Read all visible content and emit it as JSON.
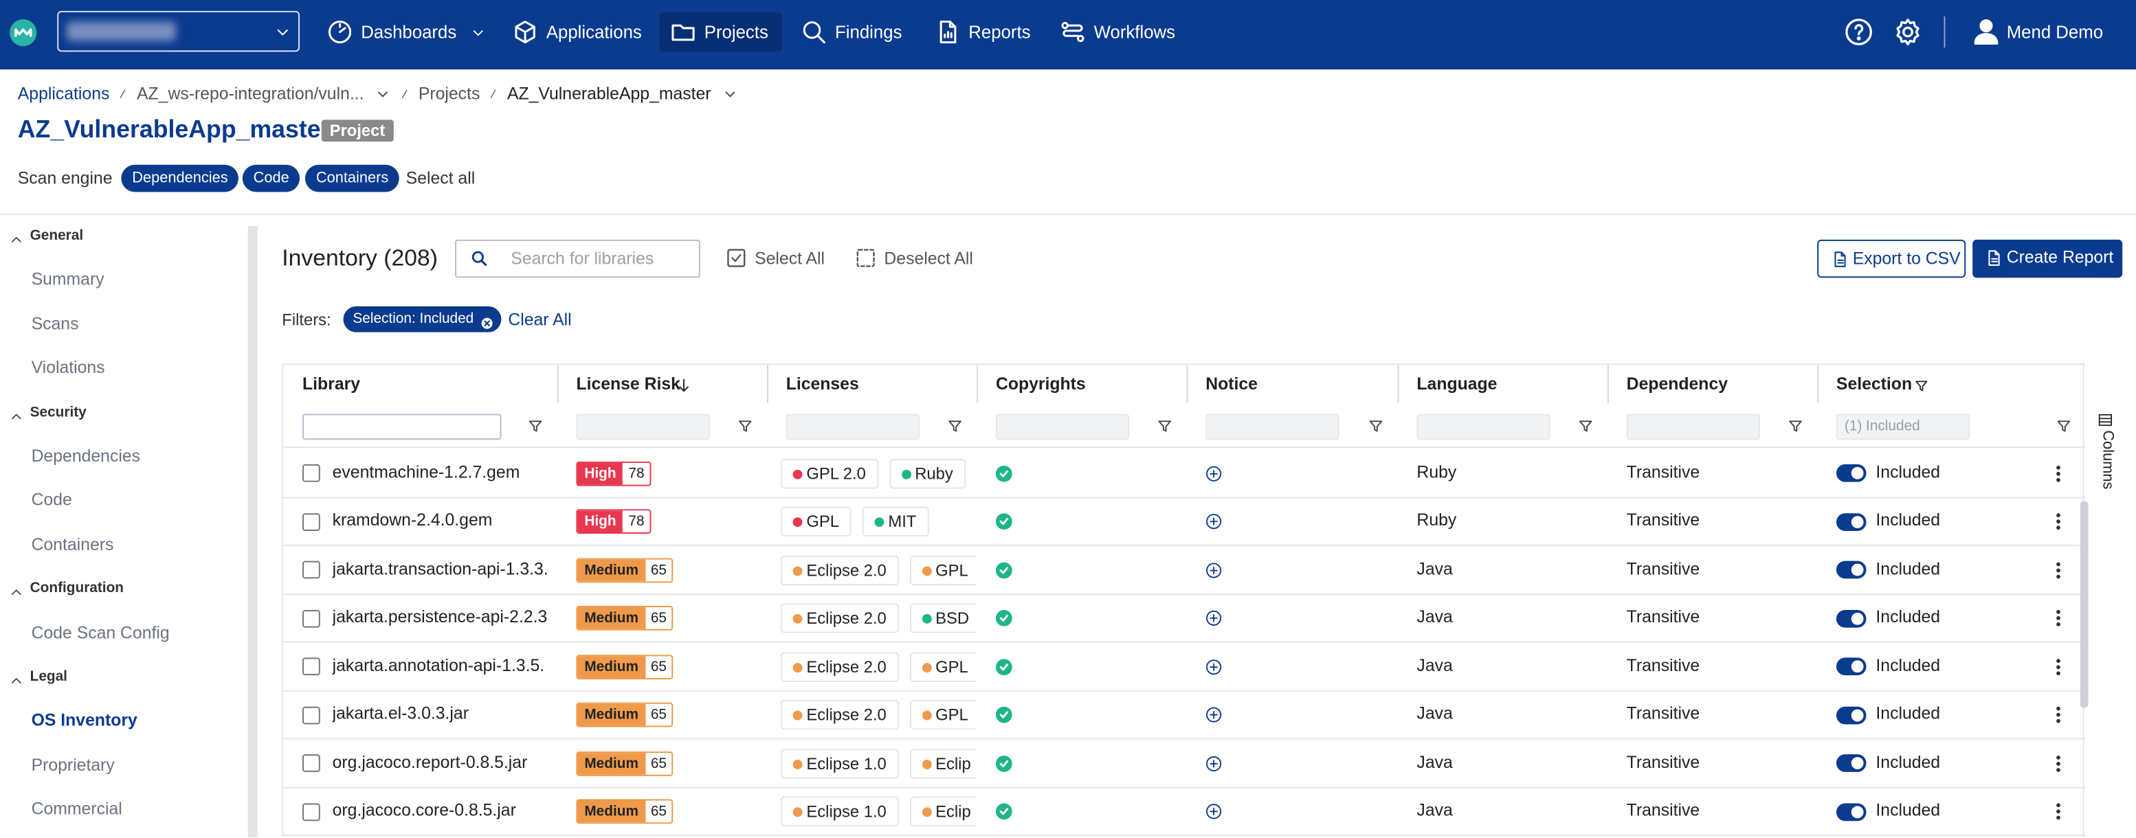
{
  "nav": {
    "items": [
      "Dashboards",
      "Applications",
      "Projects",
      "Findings",
      "Reports",
      "Workflows"
    ],
    "active": 2,
    "user": "Mend Demo"
  },
  "breadcrumb": [
    "Applications",
    "AZ_ws-repo-integration/vuln...",
    "Projects",
    "AZ_VulnerableApp_master"
  ],
  "header": {
    "title": "AZ_VulnerableApp_master",
    "badge": "Project"
  },
  "scan_engine": {
    "label": "Scan engine",
    "chips": [
      "Dependencies",
      "Code",
      "Containers"
    ],
    "select_all": "Select all"
  },
  "sidebar": [
    {
      "section": "General",
      "items": [
        "Summary",
        "Scans",
        "Violations"
      ]
    },
    {
      "section": "Security",
      "items": [
        "Dependencies",
        "Code",
        "Containers"
      ]
    },
    {
      "section": "Configuration",
      "items": [
        "Code Scan Config"
      ]
    },
    {
      "section": "Legal",
      "items": [
        "OS Inventory",
        "Proprietary",
        "Commercial"
      ]
    }
  ],
  "inventory": {
    "title": "Inventory (208)",
    "search_placeholder": "Search for libraries",
    "select_all": "Select All",
    "deselect_all": "Deselect All",
    "export": "Export to CSV",
    "create": "Create Report",
    "filters_label": "Filters:",
    "filter_chip": "Selection: Included",
    "clear_all": "Clear All",
    "selection_filter": "(1) Included",
    "columns_toggle": "Columns"
  },
  "table": {
    "columns": [
      "Library",
      "License Risk",
      "Licenses",
      "Copyrights",
      "Notice",
      "Language",
      "Dependency",
      "Selection"
    ],
    "rows": [
      {
        "library": "eventmachine-1.2.7.gem",
        "risk": "High",
        "score": "78",
        "licenses": [
          {
            "name": "GPL 2.0",
            "color": "#e8384f"
          },
          {
            "name": "Ruby",
            "color": "#1fb58a"
          }
        ],
        "language": "Ruby",
        "dependency": "Transitive",
        "selection": "Included"
      },
      {
        "library": "kramdown-2.4.0.gem",
        "risk": "High",
        "score": "78",
        "licenses": [
          {
            "name": "GPL",
            "color": "#e8384f"
          },
          {
            "name": "MIT",
            "color": "#1fb58a"
          }
        ],
        "language": "Ruby",
        "dependency": "Transitive",
        "selection": "Included"
      },
      {
        "library": "jakarta.transaction-api-1.3.3.",
        "risk": "Medium",
        "score": "65",
        "licenses": [
          {
            "name": "Eclipse 2.0",
            "color": "#ef9a4a"
          },
          {
            "name": "GPL",
            "color": "#ef9a4a"
          }
        ],
        "language": "Java",
        "dependency": "Transitive",
        "selection": "Included"
      },
      {
        "library": "jakarta.persistence-api-2.2.3",
        "risk": "Medium",
        "score": "65",
        "licenses": [
          {
            "name": "Eclipse 2.0",
            "color": "#ef9a4a"
          },
          {
            "name": "BSD",
            "color": "#1fb58a"
          }
        ],
        "language": "Java",
        "dependency": "Transitive",
        "selection": "Included"
      },
      {
        "library": "jakarta.annotation-api-1.3.5.",
        "risk": "Medium",
        "score": "65",
        "licenses": [
          {
            "name": "Eclipse 2.0",
            "color": "#ef9a4a"
          },
          {
            "name": "GPL",
            "color": "#ef9a4a"
          }
        ],
        "language": "Java",
        "dependency": "Transitive",
        "selection": "Included"
      },
      {
        "library": "jakarta.el-3.0.3.jar",
        "risk": "Medium",
        "score": "65",
        "licenses": [
          {
            "name": "Eclipse 2.0",
            "color": "#ef9a4a"
          },
          {
            "name": "GPL",
            "color": "#ef9a4a"
          }
        ],
        "language": "Java",
        "dependency": "Transitive",
        "selection": "Included"
      },
      {
        "library": "org.jacoco.report-0.8.5.jar",
        "risk": "Medium",
        "score": "65",
        "licenses": [
          {
            "name": "Eclipse 1.0",
            "color": "#ef9a4a"
          },
          {
            "name": "Eclip",
            "color": "#ef9a4a"
          }
        ],
        "language": "Java",
        "dependency": "Transitive",
        "selection": "Included"
      },
      {
        "library": "org.jacoco.core-0.8.5.jar",
        "risk": "Medium",
        "score": "65",
        "licenses": [
          {
            "name": "Eclipse 1.0",
            "color": "#ef9a4a"
          },
          {
            "name": "Eclip",
            "color": "#ef9a4a"
          }
        ],
        "language": "Java",
        "dependency": "Transitive",
        "selection": "Included"
      }
    ]
  }
}
